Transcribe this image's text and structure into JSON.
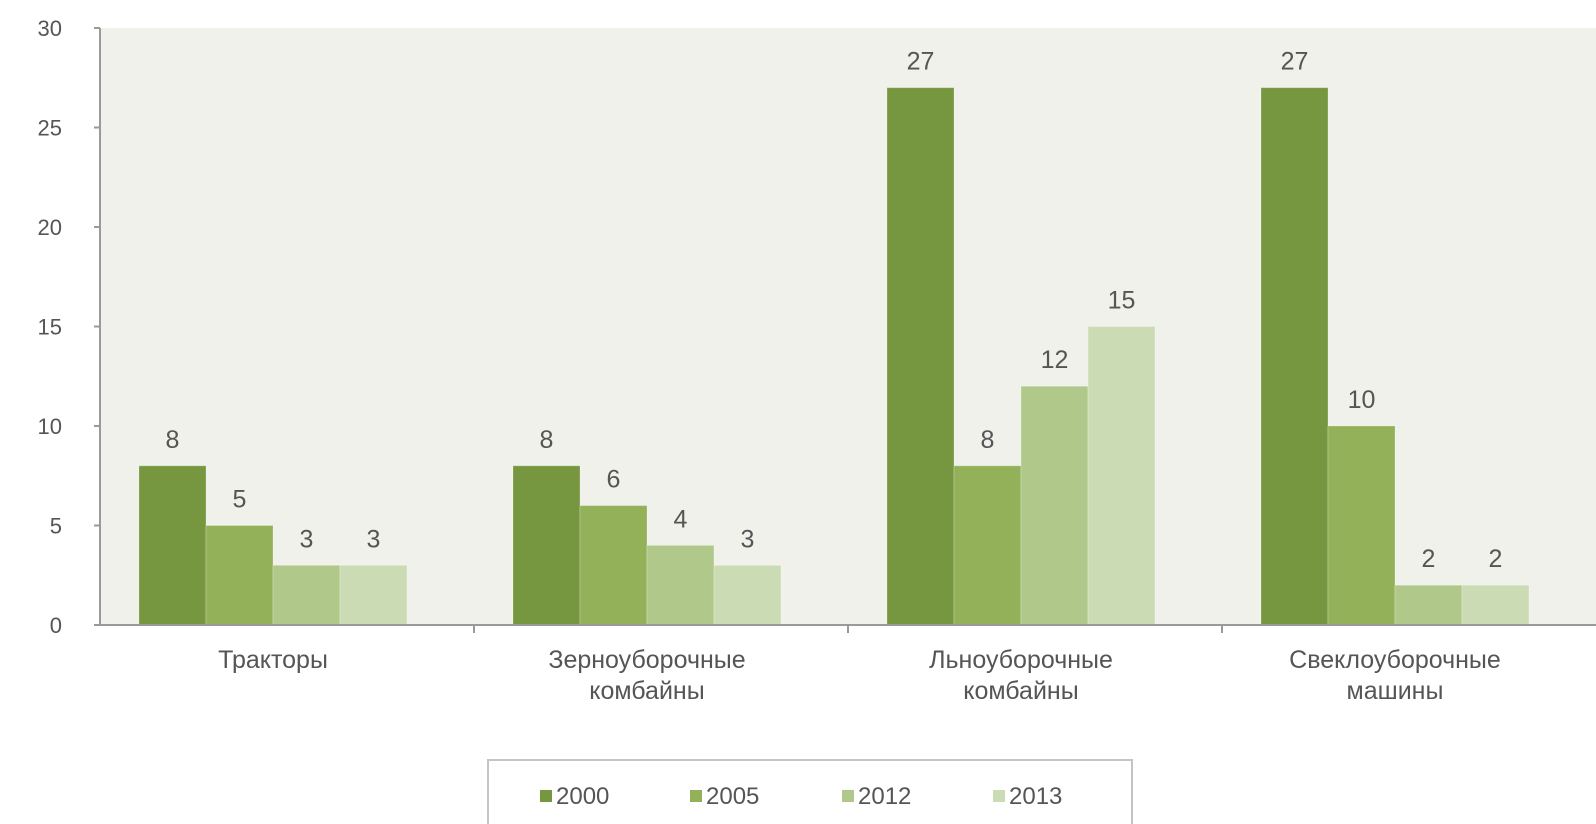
{
  "chart_data": {
    "type": "bar",
    "categories": [
      [
        "Тракторы"
      ],
      [
        "Зерноуборочные",
        "комбайны"
      ],
      [
        "Льноуборочные",
        "комбайны"
      ],
      [
        "Свеклоуборочные",
        "машины"
      ]
    ],
    "series": [
      {
        "name": "2000",
        "color": "#76963f",
        "values": [
          8,
          8,
          27,
          27
        ]
      },
      {
        "name": "2005",
        "color": "#92b158",
        "values": [
          5,
          6,
          8,
          10
        ]
      },
      {
        "name": "2012",
        "color": "#b0c98b",
        "values": [
          3,
          4,
          12,
          2
        ]
      },
      {
        "name": "2013",
        "color": "#cbdcb5",
        "values": [
          3,
          3,
          15,
          2
        ]
      }
    ],
    "ylim": [
      0,
      30
    ],
    "yticks": [
      0,
      5,
      10,
      15,
      20,
      25,
      30
    ],
    "grid": false,
    "legend_position": "bottom",
    "plot_background": "#eff1ea",
    "title": "",
    "xlabel": "",
    "ylabel": ""
  }
}
